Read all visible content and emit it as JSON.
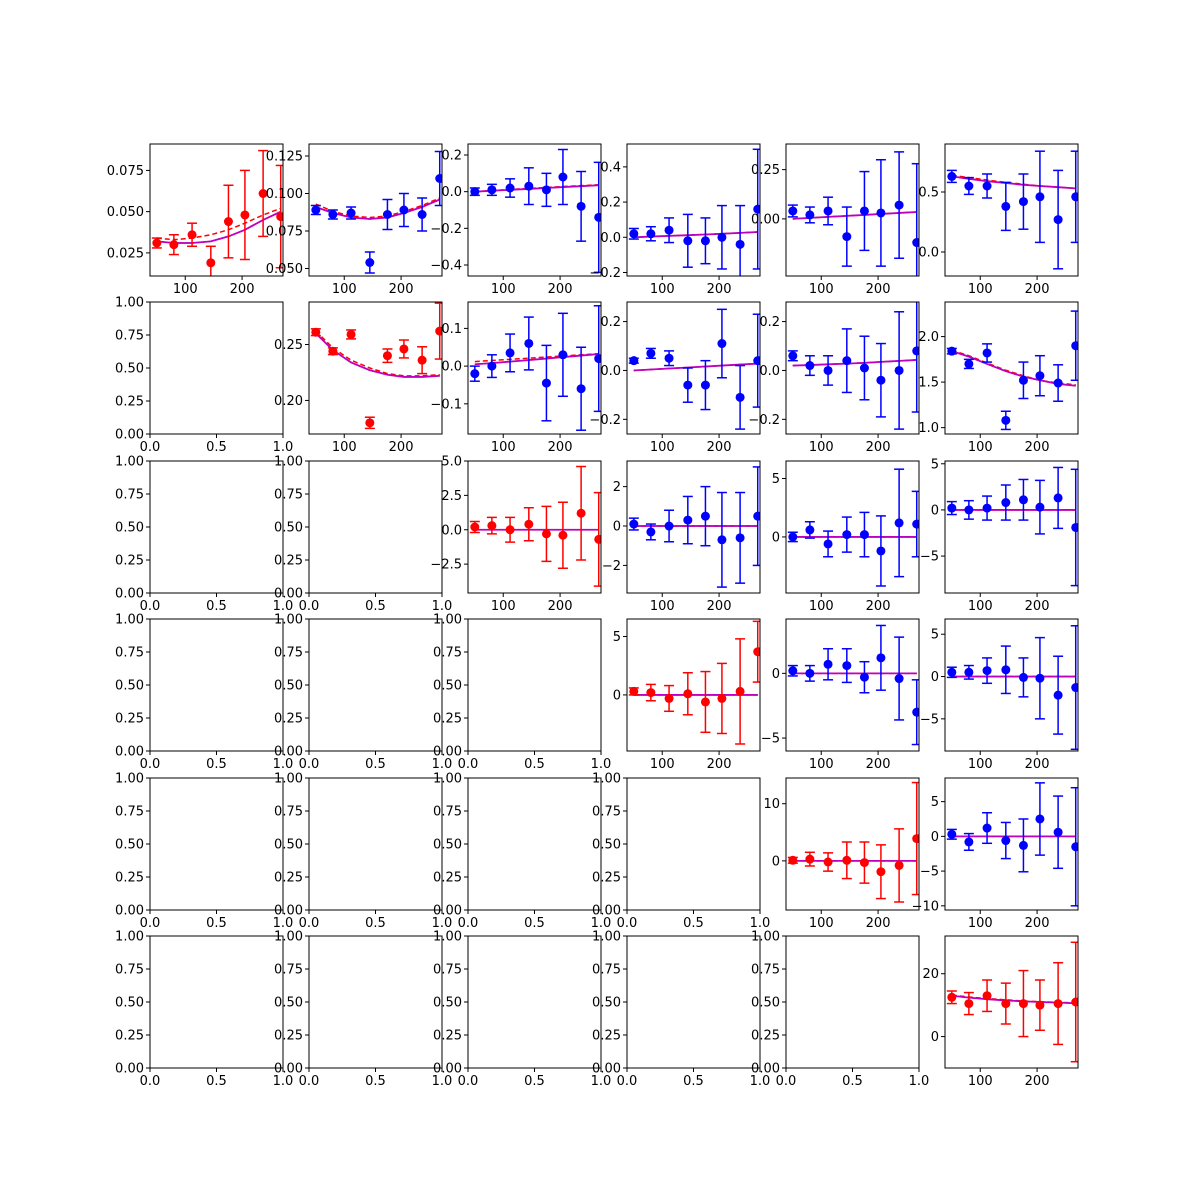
{
  "chart_data": {
    "type": "scatter",
    "layout": "6x6 grid of subplots (upper-triangular populated, lower-left empty)",
    "colors": {
      "diagonal": "#ff0000",
      "offdiag": "#0000ff",
      "model_solid": "#bf00bf",
      "model_dashed": "#ff0000",
      "model_dark": "#000000"
    },
    "x": [
      50,
      80,
      112,
      145,
      176,
      205,
      237,
      268
    ],
    "empty_ticks": [
      "0.0",
      "0.5",
      "1.0"
    ],
    "empty_yticks": [
      "0.00",
      "0.25",
      "0.50",
      "0.75",
      "1.00"
    ],
    "panels": [
      {
        "row": 0,
        "col": 0,
        "color": "red",
        "ylim": [
          0.011,
          0.091
        ],
        "yticks": [
          0.025,
          0.05,
          0.075
        ],
        "yticklabels": [
          "0.025",
          "0.050",
          "0.075"
        ],
        "y": [
          0.031,
          0.03,
          0.036,
          0.019,
          0.044,
          0.048,
          0.061,
          0.047
        ],
        "err": [
          0.003,
          0.006,
          0.007,
          0.01,
          0.022,
          0.027,
          0.026,
          0.031
        ],
        "model": [
          0.032,
          0.031,
          0.031,
          0.032,
          0.035,
          0.039,
          0.045,
          0.05
        ],
        "model2": [
          0.034,
          0.033,
          0.034,
          0.036,
          0.039,
          0.043,
          0.048,
          0.052
        ]
      },
      {
        "row": 0,
        "col": 1,
        "color": "blue",
        "ylim": [
          0.045,
          0.133
        ],
        "yticks": [
          0.05,
          0.075,
          0.1,
          0.125
        ],
        "yticklabels": [
          "0.050",
          "0.075",
          "0.100",
          "0.125"
        ],
        "y": [
          0.089,
          0.086,
          0.087,
          0.054,
          0.086,
          0.089,
          0.086,
          0.11
        ],
        "err": [
          0.003,
          0.003,
          0.004,
          0.007,
          0.01,
          0.011,
          0.011,
          0.018
        ],
        "model": [
          0.091,
          0.087,
          0.084,
          0.083,
          0.084,
          0.087,
          0.091,
          0.096
        ],
        "model2": [
          0.093,
          0.088,
          0.085,
          0.084,
          0.085,
          0.088,
          0.092,
          0.097
        ]
      },
      {
        "row": 0,
        "col": 2,
        "color": "blue",
        "ylim": [
          -0.46,
          0.26
        ],
        "yticks": [
          -0.4,
          -0.2,
          0,
          0.2
        ],
        "yticklabels": [
          "−0.4",
          "−0.2",
          "0.0",
          "0.2"
        ],
        "y": [
          0.0,
          0.01,
          0.02,
          0.03,
          0.01,
          0.08,
          -0.08,
          -0.14
        ],
        "err": [
          0.02,
          0.03,
          0.05,
          0.1,
          0.09,
          0.15,
          0.19,
          0.3
        ],
        "model": [
          0.0,
          0.005,
          0.01,
          0.015,
          0.02,
          0.025,
          0.03,
          0.035
        ],
        "model2": [
          0.0,
          0.006,
          0.012,
          0.018,
          0.023,
          0.028,
          0.033,
          0.038
        ]
      },
      {
        "row": 0,
        "col": 3,
        "color": "blue",
        "ylim": [
          -0.22,
          0.53
        ],
        "yticks": [
          -0.2,
          0,
          0.2,
          0.4
        ],
        "yticklabels": [
          "−0.2",
          "0.0",
          "0.2",
          "0.4"
        ],
        "y": [
          0.02,
          0.02,
          0.04,
          -0.02,
          -0.02,
          0.0,
          -0.04,
          0.16
        ],
        "err": [
          0.03,
          0.04,
          0.07,
          0.15,
          0.13,
          0.18,
          0.22,
          0.34
        ],
        "model": [
          0.0,
          0.004,
          0.008,
          0.012,
          0.016,
          0.02,
          0.025,
          0.03
        ],
        "model2": [
          0.0,
          0.004,
          0.008,
          0.012,
          0.016,
          0.02,
          0.025,
          0.03
        ]
      },
      {
        "row": 0,
        "col": 4,
        "color": "blue",
        "ylim": [
          -0.29,
          0.38
        ],
        "yticks": [
          0,
          0.25
        ],
        "yticklabels": [
          "0.00",
          "0.25"
        ],
        "y": [
          0.04,
          0.02,
          0.04,
          -0.09,
          0.04,
          0.03,
          0.07,
          -0.12
        ],
        "err": [
          0.03,
          0.04,
          0.07,
          0.15,
          0.2,
          0.27,
          0.27,
          0.4
        ],
        "model": [
          0.0,
          0.005,
          0.01,
          0.015,
          0.02,
          0.025,
          0.03,
          0.035
        ],
        "model2": [
          0.0,
          0.005,
          0.01,
          0.015,
          0.02,
          0.025,
          0.03,
          0.035
        ]
      },
      {
        "row": 0,
        "col": 5,
        "color": "blue",
        "ylim": [
          -0.2,
          0.9
        ],
        "yticks": [
          0,
          0.5
        ],
        "yticklabels": [
          "0.0",
          "0.5"
        ],
        "y": [
          0.63,
          0.55,
          0.55,
          0.38,
          0.42,
          0.46,
          0.27,
          0.46
        ],
        "err": [
          0.05,
          0.07,
          0.1,
          0.2,
          0.23,
          0.38,
          0.41,
          0.38
        ],
        "model": [
          0.63,
          0.61,
          0.59,
          0.575,
          0.56,
          0.55,
          0.54,
          0.53
        ],
        "model2": [
          0.64,
          0.62,
          0.6,
          0.58,
          0.565,
          0.55,
          0.54,
          0.53
        ]
      },
      {
        "row": 1,
        "col": 1,
        "color": "red",
        "ylim": [
          0.17,
          0.288
        ],
        "yticks": [
          0.2,
          0.25
        ],
        "yticklabels": [
          "0.20",
          "0.25"
        ],
        "y": [
          0.261,
          0.244,
          0.259,
          0.18,
          0.24,
          0.246,
          0.236,
          0.262
        ],
        "err": [
          0.003,
          0.003,
          0.004,
          0.005,
          0.006,
          0.008,
          0.012,
          0.025
        ],
        "model": [
          0.26,
          0.245,
          0.234,
          0.227,
          0.223,
          0.221,
          0.221,
          0.222
        ],
        "model2": [
          0.262,
          0.247,
          0.236,
          0.229,
          0.224,
          0.222,
          0.222,
          0.223
        ]
      },
      {
        "row": 1,
        "col": 2,
        "color": "blue",
        "ylim": [
          -0.18,
          0.17
        ],
        "yticks": [
          -0.1,
          0,
          0.1
        ],
        "yticklabels": [
          "−0.1",
          "0.0",
          "0.1"
        ],
        "y": [
          -0.02,
          0.0,
          0.035,
          0.06,
          -0.045,
          0.03,
          -0.06,
          0.02
        ],
        "err": [
          0.02,
          0.03,
          0.05,
          0.07,
          0.1,
          0.11,
          0.11,
          0.14
        ],
        "model": [
          0.005,
          0.008,
          0.012,
          0.016,
          0.02,
          0.024,
          0.028,
          0.032
        ],
        "model2": [
          0.012,
          0.015,
          0.018,
          0.021,
          0.024,
          0.027,
          0.03,
          0.033
        ]
      },
      {
        "row": 1,
        "col": 3,
        "color": "blue",
        "ylim": [
          -0.26,
          0.28
        ],
        "yticks": [
          -0.2,
          0,
          0.2
        ],
        "yticklabels": [
          "−0.2",
          "0.0",
          "0.2"
        ],
        "y": [
          0.04,
          0.07,
          0.05,
          -0.06,
          -0.06,
          0.11,
          -0.11,
          0.04
        ],
        "err": [
          0.01,
          0.02,
          0.03,
          0.07,
          0.1,
          0.14,
          0.13,
          0.19
        ],
        "model": [
          0.0,
          0.004,
          0.008,
          0.012,
          0.016,
          0.02,
          0.024,
          0.028
        ],
        "model2": [
          0.0,
          0.004,
          0.008,
          0.012,
          0.016,
          0.02,
          0.024,
          0.028
        ]
      },
      {
        "row": 1,
        "col": 4,
        "color": "blue",
        "ylim": [
          -0.26,
          0.28
        ],
        "yticks": [
          -0.2,
          0,
          0.2
        ],
        "yticklabels": [
          "−0.2",
          "0.0",
          "0.2"
        ],
        "y": [
          0.06,
          0.02,
          0.0,
          0.04,
          0.01,
          -0.04,
          0.0,
          0.08
        ],
        "err": [
          0.02,
          0.04,
          0.06,
          0.13,
          0.13,
          0.15,
          0.24,
          0.25
        ],
        "model": [
          0.02,
          0.022,
          0.025,
          0.028,
          0.031,
          0.035,
          0.039,
          0.043
        ],
        "model2": [
          0.02,
          0.022,
          0.025,
          0.028,
          0.031,
          0.035,
          0.039,
          0.043
        ]
      },
      {
        "row": 1,
        "col": 5,
        "color": "blue",
        "ylim": [
          0.93,
          2.38
        ],
        "yticks": [
          1.0,
          1.5,
          2.0
        ],
        "yticklabels": [
          "1.0",
          "1.5",
          "2.0"
        ],
        "y": [
          1.84,
          1.7,
          1.82,
          1.08,
          1.52,
          1.57,
          1.49,
          1.9
        ],
        "err": [
          0.03,
          0.05,
          0.1,
          0.1,
          0.2,
          0.22,
          0.2,
          0.38
        ],
        "model": [
          1.84,
          1.78,
          1.7,
          1.62,
          1.56,
          1.52,
          1.48,
          1.46
        ],
        "model2": [
          1.85,
          1.79,
          1.71,
          1.63,
          1.57,
          1.52,
          1.49,
          1.47
        ]
      },
      {
        "row": 2,
        "col": 2,
        "color": "red",
        "ylim": [
          -4.6,
          5.0
        ],
        "yticks": [
          -2.5,
          0,
          2.5,
          5.0
        ],
        "yticklabels": [
          "−2.5",
          "0.0",
          "2.5",
          "5.0"
        ],
        "y": [
          0.2,
          0.3,
          0.0,
          0.4,
          -0.3,
          -0.4,
          1.2,
          -0.7
        ],
        "err": [
          0.4,
          0.6,
          0.9,
          1.2,
          2.0,
          2.4,
          3.4,
          3.4
        ],
        "model": [
          0.0,
          0.0,
          0.0,
          0.0,
          0.0,
          0.0,
          0.0,
          0.0
        ],
        "model2": [
          0.0,
          0.0,
          0.0,
          0.0,
          0.0,
          0.0,
          0.0,
          0.0
        ]
      },
      {
        "row": 2,
        "col": 3,
        "color": "blue",
        "ylim": [
          -3.4,
          3.3
        ],
        "yticks": [
          -2,
          0,
          2
        ],
        "yticklabels": [
          "−2",
          "0",
          "2"
        ],
        "y": [
          0.1,
          -0.3,
          0.0,
          0.3,
          0.5,
          -0.7,
          -0.6,
          0.5
        ],
        "err": [
          0.3,
          0.4,
          0.8,
          1.2,
          1.5,
          2.4,
          2.3,
          2.5
        ],
        "model": [
          0.0,
          0.0,
          0.0,
          0.0,
          0.0,
          0.0,
          0.0,
          0.0
        ],
        "model2": [
          0.0,
          0.0,
          0.0,
          0.0,
          0.0,
          0.0,
          0.0,
          0.0
        ]
      },
      {
        "row": 2,
        "col": 4,
        "color": "blue",
        "ylim": [
          -4.8,
          6.5
        ],
        "yticks": [
          0,
          5
        ],
        "yticklabels": [
          "0",
          "5"
        ],
        "y": [
          0.0,
          0.6,
          -0.6,
          0.2,
          0.2,
          -1.2,
          1.2,
          1.1
        ],
        "err": [
          0.4,
          0.7,
          1.1,
          1.5,
          1.9,
          3.0,
          4.6,
          2.8
        ],
        "model": [
          0.0,
          0.0,
          0.0,
          0.0,
          0.0,
          0.0,
          0.0,
          0.0
        ],
        "model2": [
          0.0,
          0.0,
          0.0,
          0.0,
          0.0,
          0.0,
          0.0,
          0.0
        ]
      },
      {
        "row": 2,
        "col": 5,
        "color": "blue",
        "ylim": [
          -9.0,
          5.3
        ],
        "yticks": [
          -5,
          0,
          5
        ],
        "yticklabels": [
          "−5",
          "0",
          "5"
        ],
        "y": [
          0.2,
          0.0,
          0.2,
          0.8,
          1.1,
          0.3,
          1.3,
          -1.9
        ],
        "err": [
          0.7,
          1.0,
          1.3,
          1.9,
          2.2,
          2.9,
          3.3,
          6.3
        ],
        "model": [
          0.0,
          0.0,
          0.0,
          0.0,
          0.0,
          0.0,
          0.0,
          0.0
        ],
        "model2": [
          0.0,
          0.0,
          0.0,
          0.0,
          0.0,
          0.0,
          0.0,
          0.0
        ]
      },
      {
        "row": 3,
        "col": 3,
        "color": "red",
        "ylim": [
          -4.8,
          6.5
        ],
        "yticks": [
          0,
          5
        ],
        "yticklabels": [
          "0",
          "5"
        ],
        "y": [
          0.3,
          0.2,
          -0.3,
          0.1,
          -0.6,
          -0.3,
          0.3,
          3.7
        ],
        "err": [
          0.3,
          0.7,
          1.1,
          1.8,
          2.6,
          3.0,
          4.5,
          2.6
        ],
        "model": [
          0.0,
          0.0,
          0.0,
          0.0,
          0.0,
          0.0,
          0.0,
          0.0
        ],
        "model2": [
          0.0,
          0.0,
          0.0,
          0.0,
          0.0,
          0.0,
          0.0,
          0.0
        ]
      },
      {
        "row": 3,
        "col": 4,
        "color": "blue",
        "ylim": [
          -6.0,
          4.2
        ],
        "yticks": [
          -5,
          0
        ],
        "yticklabels": [
          "−5",
          "0"
        ],
        "y": [
          0.2,
          0.0,
          0.7,
          0.6,
          -0.3,
          1.2,
          -0.4,
          -3.0
        ],
        "err": [
          0.4,
          0.6,
          1.2,
          1.3,
          1.2,
          2.5,
          3.2,
          2.5
        ],
        "model": [
          0.0,
          0.0,
          0.0,
          0.0,
          0.0,
          0.0,
          0.0,
          0.0
        ],
        "model2": [
          0.0,
          0.0,
          0.0,
          0.0,
          0.0,
          0.0,
          0.0,
          0.0
        ]
      },
      {
        "row": 3,
        "col": 5,
        "color": "blue",
        "ylim": [
          -8.8,
          6.8
        ],
        "yticks": [
          -5,
          0,
          5
        ],
        "yticklabels": [
          "−5",
          "0",
          "5"
        ],
        "y": [
          0.5,
          0.5,
          0.7,
          0.8,
          -0.1,
          -0.2,
          -2.2,
          -1.3
        ],
        "err": [
          0.6,
          0.8,
          1.5,
          2.8,
          2.3,
          4.8,
          4.6,
          7.3
        ],
        "model": [
          0.0,
          0.0,
          0.0,
          0.0,
          0.0,
          0.0,
          0.0,
          0.0
        ],
        "model2": [
          0.0,
          0.0,
          0.0,
          0.0,
          0.0,
          0.0,
          0.0,
          0.0
        ]
      },
      {
        "row": 4,
        "col": 4,
        "color": "red",
        "ylim": [
          -8.6,
          14.5
        ],
        "yticks": [
          0,
          10
        ],
        "yticklabels": [
          "0",
          "10"
        ],
        "y": [
          0.1,
          0.3,
          -0.2,
          0.1,
          -0.3,
          -1.9,
          -0.8,
          3.9
        ],
        "err": [
          0.5,
          1.2,
          1.6,
          3.2,
          3.6,
          4.7,
          6.4,
          9.8
        ],
        "model": [
          0.0,
          0.0,
          0.0,
          0.0,
          0.0,
          0.0,
          0.0,
          0.0
        ],
        "model2": [
          0.0,
          0.0,
          0.0,
          0.0,
          0.0,
          0.0,
          0.0,
          0.0
        ]
      },
      {
        "row": 4,
        "col": 5,
        "color": "blue",
        "ylim": [
          -10.6,
          8.4
        ],
        "yticks": [
          -10,
          -5,
          0,
          5
        ],
        "yticklabels": [
          "−10",
          "−5",
          "0",
          "5"
        ],
        "y": [
          0.3,
          -0.8,
          1.2,
          -0.6,
          -1.3,
          2.5,
          0.6,
          -1.5
        ],
        "err": [
          0.7,
          1.2,
          2.2,
          2.6,
          3.8,
          5.2,
          5.2,
          8.5
        ],
        "model": [
          0.0,
          0.0,
          0.0,
          0.0,
          0.0,
          0.0,
          0.0,
          0.0
        ],
        "model2": [
          0.0,
          0.0,
          0.0,
          0.0,
          0.0,
          0.0,
          0.0,
          0.0
        ]
      },
      {
        "row": 5,
        "col": 5,
        "color": "red",
        "ylim": [
          -10,
          32
        ],
        "yticks": [
          0,
          20
        ],
        "yticklabels": [
          "0",
          "20"
        ],
        "y": [
          12.5,
          10.5,
          13.0,
          10.5,
          10.5,
          10.0,
          10.5,
          11.0
        ],
        "err": [
          2.0,
          3.5,
          5.0,
          6.5,
          10.5,
          8.0,
          13.0,
          19.0
        ],
        "model": [
          13.0,
          12.4,
          11.9,
          11.5,
          11.2,
          11.0,
          10.8,
          10.6
        ],
        "model2": [
          13.2,
          12.6,
          12.1,
          11.7,
          11.3,
          11.1,
          10.9,
          10.7
        ]
      }
    ]
  }
}
